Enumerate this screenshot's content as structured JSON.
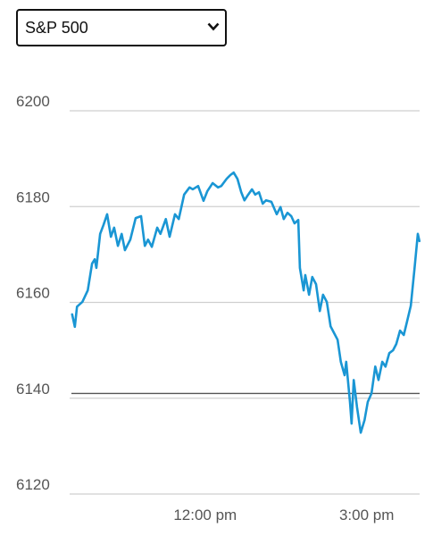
{
  "dropdown": {
    "selected": "S&P 500"
  },
  "chart_data": {
    "type": "line",
    "color": "#1a96d4",
    "x": [
      9.53,
      9.58,
      9.62,
      9.72,
      9.82,
      9.9,
      9.95,
      9.98,
      10.05,
      10.11,
      10.18,
      10.25,
      10.31,
      10.38,
      10.45,
      10.51,
      10.61,
      10.71,
      10.81,
      10.88,
      10.94,
      11.01,
      11.11,
      11.17,
      11.27,
      11.34,
      11.44,
      11.51,
      11.61,
      11.71,
      11.77,
      11.87,
      11.97,
      12.04,
      12.14,
      12.24,
      12.3,
      12.4,
      12.47,
      12.53,
      12.6,
      12.67,
      12.73,
      12.8,
      12.87,
      12.93,
      13.0,
      13.07,
      13.13,
      13.23,
      13.33,
      13.4,
      13.46,
      13.53,
      13.6,
      13.66,
      13.73,
      13.76,
      13.83,
      13.86,
      13.93,
      13.99,
      14.06,
      14.13,
      14.19,
      14.26,
      14.33,
      14.39,
      14.46,
      14.52,
      14.59,
      14.62,
      14.69,
      14.72,
      14.76,
      14.82,
      14.89,
      14.96,
      15.02,
      15.09,
      15.16,
      15.22,
      15.29,
      15.35,
      15.42,
      15.49,
      15.55,
      15.62,
      15.69,
      15.75,
      15.82,
      15.89,
      15.95,
      15.98
    ],
    "values": [
      6157.5,
      6154.9,
      6159.1,
      6160.1,
      6162.5,
      6168.1,
      6169,
      6167.2,
      6174.3,
      6176.1,
      6178.4,
      6173.7,
      6175.6,
      6171.8,
      6174.3,
      6170.9,
      6173.1,
      6177.6,
      6178,
      6171.8,
      6173.1,
      6171.6,
      6175.6,
      6174.3,
      6177.4,
      6173.7,
      6178.4,
      6177.4,
      6182.5,
      6184,
      6183.6,
      6184.3,
      6181.2,
      6183.2,
      6184.9,
      6184,
      6184.3,
      6185.8,
      6186.6,
      6187.1,
      6185.8,
      6183,
      6181.3,
      6182.5,
      6183.6,
      6182.5,
      6183,
      6180.6,
      6181.3,
      6181,
      6178.4,
      6179.9,
      6177.4,
      6178.7,
      6178,
      6176.5,
      6177.2,
      6167.2,
      6162.5,
      6165.7,
      6161.6,
      6165.3,
      6163.8,
      6158.2,
      6161.6,
      6160.1,
      6155,
      6153.7,
      6152.2,
      6147.6,
      6144.8,
      6147.6,
      6139.2,
      6134.7,
      6143.8,
      6138.2,
      6132.8,
      6135.4,
      6139.2,
      6141,
      6146.6,
      6143.8,
      6147.6,
      6146.6,
      6149.4,
      6150,
      6151.3,
      6154.1,
      6153.2,
      6156,
      6159.3,
      6167.2,
      6174.3,
      6172.8
    ],
    "reference_line": 6141,
    "xlim": [
      9.5,
      16
    ],
    "xticks": [
      {
        "value": 12,
        "label": "12:00 pm"
      },
      {
        "value": 15,
        "label": "3:00 pm"
      }
    ],
    "ylim": [
      6120,
      6200
    ],
    "yticks": [
      6120,
      6140,
      6160,
      6180,
      6200
    ],
    "grid": true
  }
}
